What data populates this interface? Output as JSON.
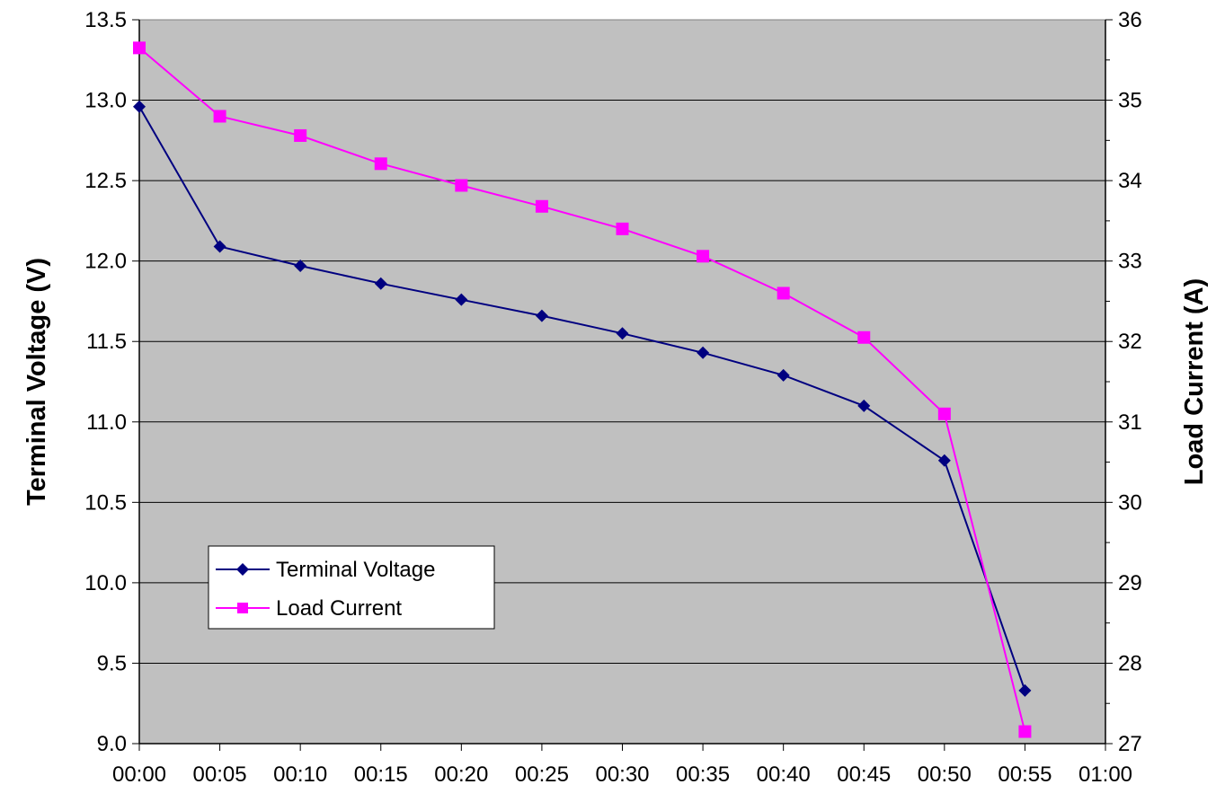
{
  "chart_data": {
    "type": "line",
    "x": [
      "00:00",
      "00:05",
      "00:10",
      "00:15",
      "00:20",
      "00:25",
      "00:30",
      "00:35",
      "00:40",
      "00:45",
      "00:50",
      "00:55"
    ],
    "x_ticks": [
      "00:00",
      "00:05",
      "00:10",
      "00:15",
      "00:20",
      "00:25",
      "00:30",
      "00:35",
      "00:40",
      "00:45",
      "00:50",
      "00:55",
      "01:00"
    ],
    "series": [
      {
        "name": "Terminal Voltage",
        "axis": "left",
        "color": "#000080",
        "marker": "diamond",
        "values": [
          12.96,
          12.09,
          11.97,
          11.86,
          11.76,
          11.66,
          11.55,
          11.43,
          11.29,
          11.1,
          10.76,
          9.33
        ]
      },
      {
        "name": "Load Current",
        "axis": "right",
        "color": "#FF00FF",
        "marker": "square",
        "values": [
          35.65,
          34.8,
          34.56,
          34.21,
          33.94,
          33.68,
          33.4,
          33.06,
          32.6,
          32.05,
          31.1,
          27.15
        ]
      }
    ],
    "ylabel": "Terminal Voltage (V)",
    "y2label": "Load Current (A)",
    "ylim": [
      9.0,
      13.5
    ],
    "y_ticks": [
      "9.0",
      "9.5",
      "10.0",
      "10.5",
      "11.0",
      "11.5",
      "12.0",
      "12.5",
      "13.0",
      "13.5"
    ],
    "y2lim": [
      27,
      36
    ],
    "y2_ticks": [
      "27",
      "28",
      "29",
      "30",
      "31",
      "32",
      "33",
      "34",
      "35",
      "36"
    ],
    "grid": "horizontal",
    "plot_background": "#C0C0C0",
    "legend_position": "lower-left"
  }
}
